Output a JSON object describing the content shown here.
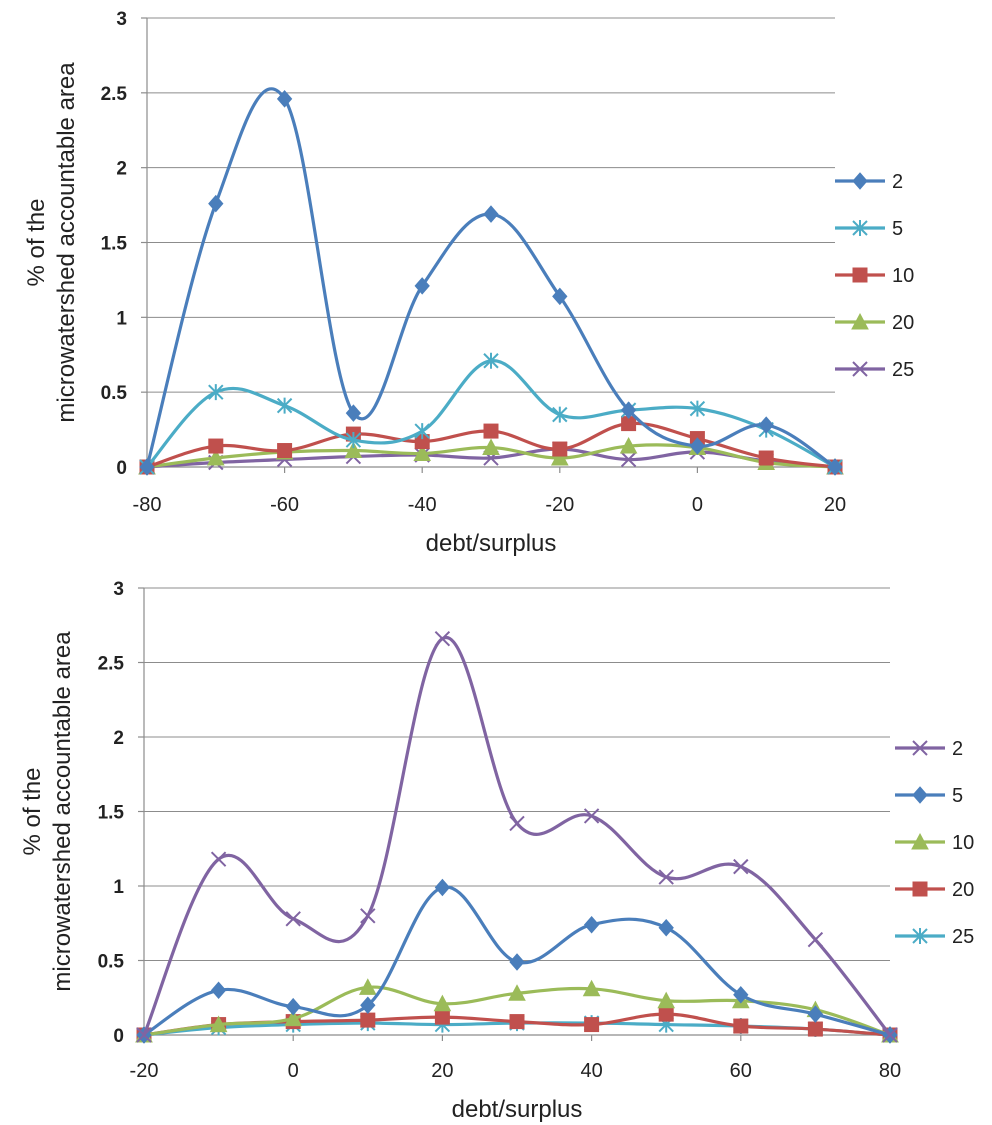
{
  "chart_data": [
    {
      "type": "line",
      "smooth": true,
      "xlabel": "debt/surplus",
      "ylabel": "% of the microwatershed accountable area",
      "xlim": [
        -80,
        20
      ],
      "ylim": [
        0,
        3
      ],
      "x_ticks": [
        "-80",
        "-60",
        "-40",
        "-20",
        "0",
        "20"
      ],
      "y_ticks": [
        "0",
        "0.5",
        "1",
        "1.5",
        "2",
        "2.5",
        "3"
      ],
      "grid": "horizontal",
      "legend": "right",
      "x": [
        -80,
        -70,
        -60,
        -50,
        -40,
        -30,
        -20,
        -10,
        0,
        10,
        20
      ],
      "series": [
        {
          "name": "2",
          "color": "#4a7ebb",
          "marker": "diamond",
          "values": [
            0,
            1.76,
            2.46,
            0.36,
            1.21,
            1.69,
            1.14,
            0.38,
            0.14,
            0.28,
            0
          ]
        },
        {
          "name": "5",
          "color": "#4bacc6",
          "marker": "asterisk",
          "values": [
            0,
            0.5,
            0.41,
            0.18,
            0.24,
            0.71,
            0.35,
            0.38,
            0.39,
            0.25,
            0
          ]
        },
        {
          "name": "10",
          "color": "#c0504d",
          "marker": "square",
          "values": [
            0,
            0.14,
            0.11,
            0.22,
            0.17,
            0.24,
            0.12,
            0.29,
            0.19,
            0.06,
            0
          ]
        },
        {
          "name": "20",
          "color": "#9bbb59",
          "marker": "triangle",
          "values": [
            0,
            0.06,
            0.1,
            0.11,
            0.09,
            0.13,
            0.06,
            0.14,
            0.13,
            0.03,
            0
          ]
        },
        {
          "name": "25",
          "color": "#8064a2",
          "marker": "x",
          "values": [
            0,
            0.03,
            0.05,
            0.07,
            0.08,
            0.06,
            0.12,
            0.05,
            0.1,
            0.04,
            0
          ]
        }
      ]
    },
    {
      "type": "line",
      "smooth": true,
      "xlabel": "debt/surplus",
      "ylabel": "% of the microwatershed accountable area",
      "xlim": [
        -20,
        80
      ],
      "ylim": [
        0,
        3
      ],
      "x_ticks": [
        "-20",
        "0",
        "20",
        "40",
        "60",
        "80"
      ],
      "y_ticks": [
        "0",
        "0.5",
        "1",
        "1.5",
        "2",
        "2.5",
        "3"
      ],
      "grid": "horizontal",
      "legend": "right",
      "x": [
        -20,
        -10,
        0,
        10,
        20,
        30,
        40,
        50,
        60,
        70,
        80
      ],
      "series": [
        {
          "name": "2",
          "color": "#8064a2",
          "marker": "x",
          "values": [
            0,
            1.18,
            0.78,
            0.8,
            2.66,
            1.42,
            1.47,
            1.06,
            1.13,
            0.64,
            0
          ]
        },
        {
          "name": "5",
          "color": "#4a7ebb",
          "marker": "diamond",
          "values": [
            0,
            0.3,
            0.19,
            0.2,
            0.99,
            0.49,
            0.74,
            0.72,
            0.27,
            0.14,
            0
          ]
        },
        {
          "name": "10",
          "color": "#9bbb59",
          "marker": "triangle",
          "values": [
            0,
            0.07,
            0.11,
            0.32,
            0.21,
            0.28,
            0.31,
            0.23,
            0.23,
            0.17,
            0
          ]
        },
        {
          "name": "20",
          "color": "#c0504d",
          "marker": "square",
          "values": [
            0,
            0.07,
            0.09,
            0.1,
            0.12,
            0.09,
            0.07,
            0.14,
            0.06,
            0.04,
            0
          ]
        },
        {
          "name": "25",
          "color": "#4bacc6",
          "marker": "asterisk",
          "values": [
            0,
            0.05,
            0.07,
            0.08,
            0.07,
            0.08,
            0.08,
            0.07,
            0.06,
            0.04,
            0
          ]
        }
      ]
    }
  ]
}
